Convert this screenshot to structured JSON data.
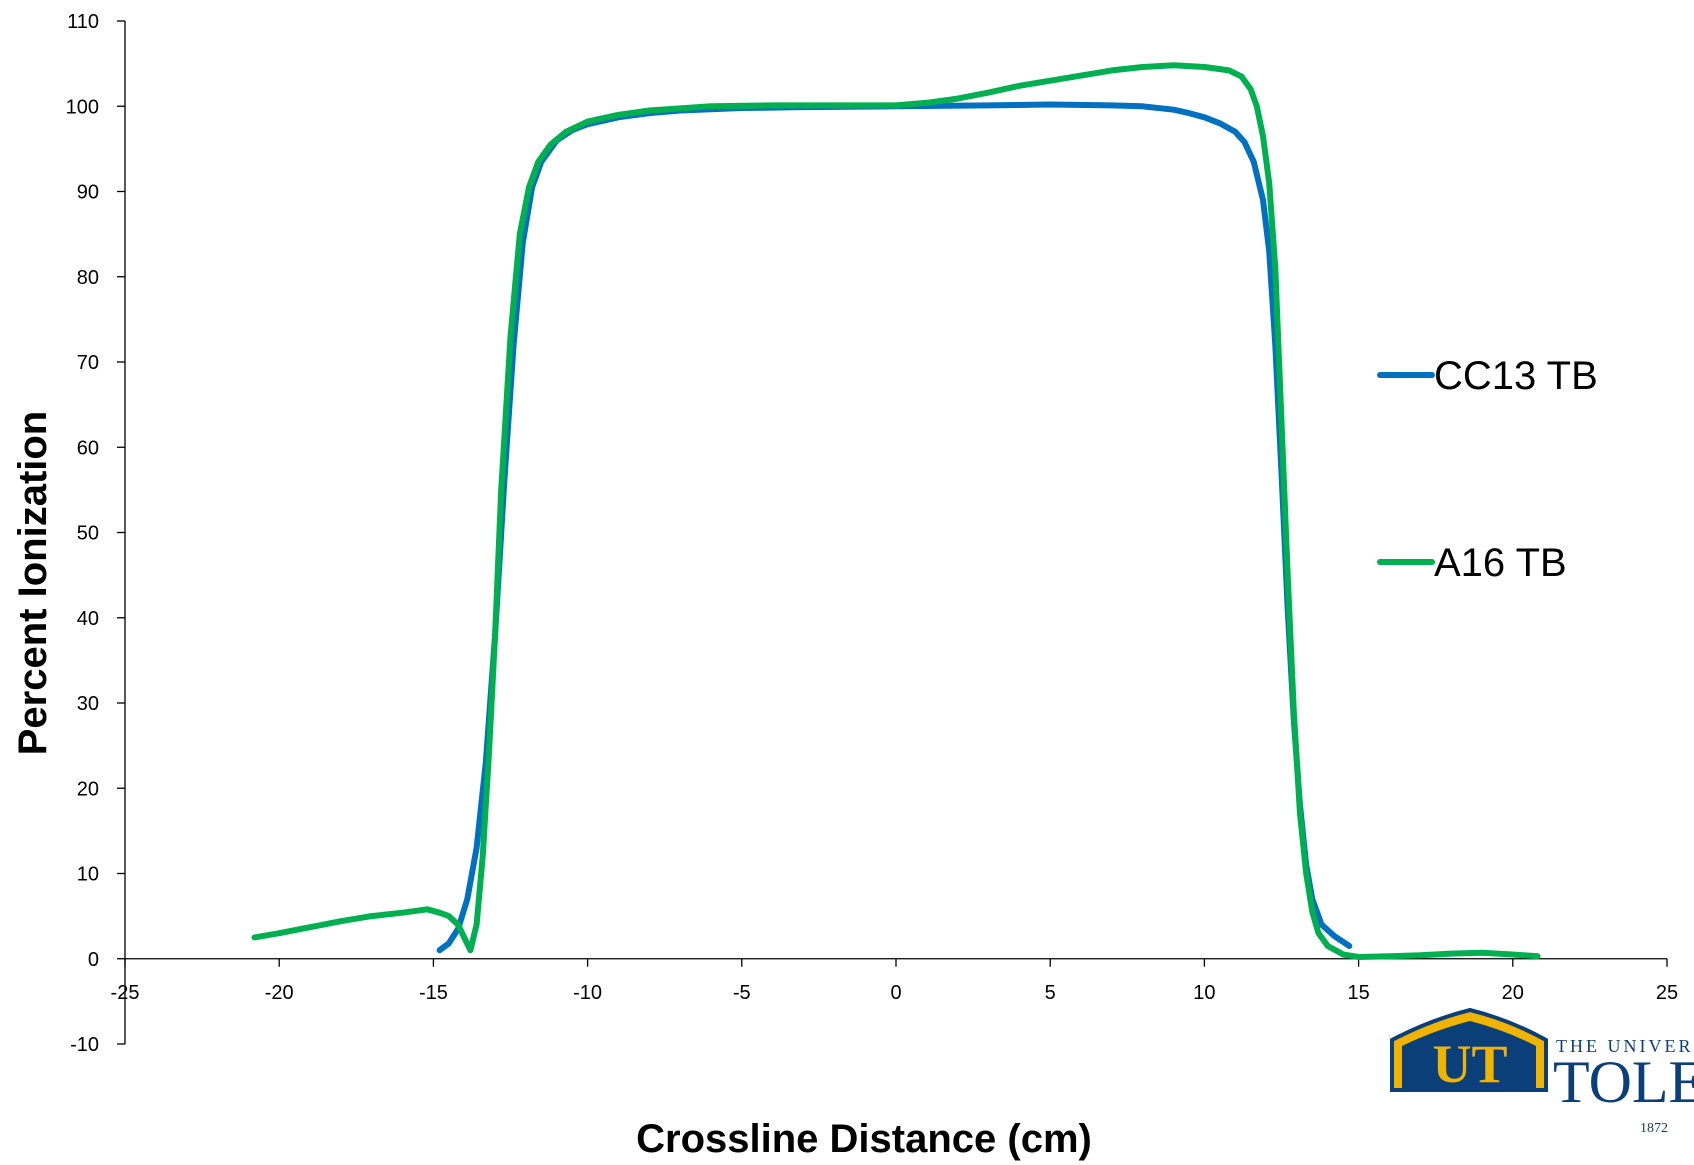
{
  "chart_data": {
    "type": "line",
    "xlabel": "Crossline Distance (cm)",
    "ylabel": "Percent Ionization",
    "xlim": [
      -25,
      25
    ],
    "ylim": [
      -10,
      110
    ],
    "xticks": [
      -25,
      -20,
      -15,
      -10,
      -5,
      0,
      5,
      10,
      15,
      20,
      25
    ],
    "yticks": [
      -10,
      0,
      10,
      20,
      30,
      40,
      50,
      60,
      70,
      80,
      90,
      100,
      110
    ],
    "grid": false,
    "legend_position": "right",
    "series": [
      {
        "name": "CC13 TB",
        "color": "#0070c0",
        "points": [
          [
            -14.8,
            1.0
          ],
          [
            -14.5,
            1.8
          ],
          [
            -14.2,
            3.5
          ],
          [
            -13.9,
            7
          ],
          [
            -13.6,
            13
          ],
          [
            -13.3,
            23
          ],
          [
            -13.0,
            38
          ],
          [
            -12.7,
            56
          ],
          [
            -12.4,
            72
          ],
          [
            -12.1,
            84
          ],
          [
            -11.8,
            90.5
          ],
          [
            -11.5,
            93.5
          ],
          [
            -11.0,
            96
          ],
          [
            -10.5,
            97.2
          ],
          [
            -10.0,
            97.9
          ],
          [
            -9.0,
            98.7
          ],
          [
            -8.0,
            99.2
          ],
          [
            -7.0,
            99.5
          ],
          [
            -5.0,
            99.8
          ],
          [
            -3.0,
            99.9
          ],
          [
            0.0,
            100.0
          ],
          [
            3.0,
            100.1
          ],
          [
            5.0,
            100.2
          ],
          [
            7.0,
            100.1
          ],
          [
            8.0,
            100.0
          ],
          [
            9.0,
            99.6
          ],
          [
            9.5,
            99.2
          ],
          [
            10.0,
            98.7
          ],
          [
            10.5,
            98.0
          ],
          [
            11.0,
            97.0
          ],
          [
            11.3,
            95.8
          ],
          [
            11.6,
            93.5
          ],
          [
            11.9,
            89
          ],
          [
            12.1,
            83
          ],
          [
            12.3,
            72
          ],
          [
            12.5,
            57
          ],
          [
            12.7,
            41
          ],
          [
            12.9,
            28
          ],
          [
            13.1,
            18
          ],
          [
            13.3,
            11
          ],
          [
            13.5,
            7
          ],
          [
            13.8,
            4
          ],
          [
            14.2,
            2.7
          ],
          [
            14.7,
            1.5
          ]
        ]
      },
      {
        "name": "A16 TB",
        "color": "#00b050",
        "points": [
          [
            -20.8,
            2.5
          ],
          [
            -20.0,
            3.0
          ],
          [
            -19.0,
            3.7
          ],
          [
            -18.0,
            4.4
          ],
          [
            -17.0,
            5.0
          ],
          [
            -16.0,
            5.4
          ],
          [
            -15.2,
            5.8
          ],
          [
            -14.8,
            5.4
          ],
          [
            -14.5,
            5.0
          ],
          [
            -14.2,
            4.0
          ],
          [
            -14.0,
            2.5
          ],
          [
            -13.8,
            1.0
          ],
          [
            -13.6,
            4
          ],
          [
            -13.4,
            12
          ],
          [
            -13.2,
            24
          ],
          [
            -13.0,
            38
          ],
          [
            -12.8,
            55
          ],
          [
            -12.5,
            73
          ],
          [
            -12.2,
            85
          ],
          [
            -11.9,
            90.5
          ],
          [
            -11.6,
            93.5
          ],
          [
            -11.2,
            95.5
          ],
          [
            -10.7,
            97
          ],
          [
            -10.0,
            98.2
          ],
          [
            -9.0,
            99.0
          ],
          [
            -8.0,
            99.5
          ],
          [
            -6.0,
            100.0
          ],
          [
            -4.0,
            100.1
          ],
          [
            -2.0,
            100.1
          ],
          [
            0.0,
            100.1
          ],
          [
            1.0,
            100.4
          ],
          [
            2.0,
            100.9
          ],
          [
            3.0,
            101.6
          ],
          [
            4.0,
            102.4
          ],
          [
            5.0,
            103.0
          ],
          [
            6.0,
            103.6
          ],
          [
            7.0,
            104.2
          ],
          [
            8.0,
            104.6
          ],
          [
            9.0,
            104.8
          ],
          [
            10.0,
            104.6
          ],
          [
            10.8,
            104.2
          ],
          [
            11.2,
            103.5
          ],
          [
            11.5,
            102.0
          ],
          [
            11.7,
            100.0
          ],
          [
            11.9,
            96.5
          ],
          [
            12.1,
            91
          ],
          [
            12.3,
            81
          ],
          [
            12.5,
            63
          ],
          [
            12.7,
            45
          ],
          [
            12.9,
            29
          ],
          [
            13.1,
            17
          ],
          [
            13.3,
            10
          ],
          [
            13.5,
            5.5
          ],
          [
            13.7,
            3
          ],
          [
            14.0,
            1.5
          ],
          [
            14.5,
            0.5
          ],
          [
            15.0,
            0.2
          ],
          [
            16.0,
            0.3
          ],
          [
            17.0,
            0.4
          ],
          [
            18.0,
            0.6
          ],
          [
            19.0,
            0.7
          ],
          [
            20.0,
            0.5
          ],
          [
            20.8,
            0.3
          ]
        ]
      }
    ]
  },
  "logo": {
    "text_line1": "THE UNIVER",
    "text_line2": "TOLE",
    "year": "1872",
    "monogram": "UT"
  }
}
